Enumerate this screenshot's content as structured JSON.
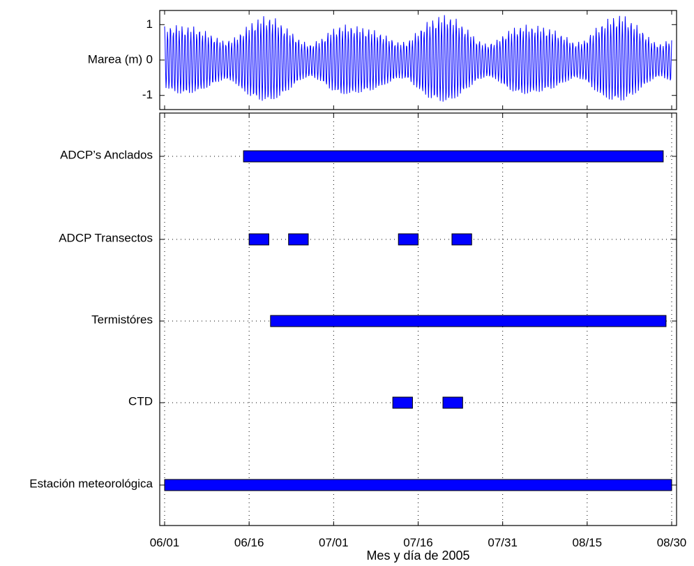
{
  "chart_data": [
    {
      "type": "line",
      "ylabel": "Marea (m)",
      "ylim": [
        -1.4,
        1.4
      ],
      "yticks": [
        -1,
        0,
        1
      ],
      "ytick_labels": [
        "-1",
        "0",
        "1"
      ],
      "x_range_days": [
        0,
        90
      ],
      "series": [
        {
          "description_free": true,
          "samples_per_day": 12,
          "envelope_max": [
            0.95,
            1.0,
            0.98,
            0.95,
            0.85,
            0.7,
            0.55,
            0.6,
            0.85,
            1.1,
            1.25,
            1.25,
            1.05,
            0.8,
            0.55,
            0.45,
            0.6,
            0.85,
            1.0,
            1.0,
            0.95,
            0.9,
            0.8,
            0.65,
            0.5,
            0.55,
            0.85,
            1.1,
            1.25,
            1.3,
            1.15,
            0.9,
            0.6,
            0.45,
            0.55,
            0.8,
            0.95,
            1.0,
            0.98,
            0.95,
            0.85,
            0.7,
            0.5,
            0.55,
            0.85,
            1.1,
            1.25,
            1.3,
            1.1,
            0.85,
            0.55,
            0.45,
            0.65
          ],
          "envelope_min": [
            -0.85,
            -1.0,
            -1.05,
            -1.0,
            -0.9,
            -0.75,
            -0.6,
            -0.65,
            -0.95,
            -1.15,
            -1.25,
            -1.25,
            -1.1,
            -0.85,
            -0.6,
            -0.5,
            -0.65,
            -0.9,
            -1.05,
            -1.05,
            -1.0,
            -0.95,
            -0.85,
            -0.7,
            -0.55,
            -0.6,
            -0.9,
            -1.15,
            -1.25,
            -1.3,
            -1.15,
            -0.9,
            -0.65,
            -0.5,
            -0.6,
            -0.85,
            -1.0,
            -1.05,
            -1.0,
            -0.95,
            -0.85,
            -0.7,
            -0.55,
            -0.6,
            -0.9,
            -1.15,
            -1.25,
            -1.25,
            -1.1,
            -0.85,
            -0.6,
            -0.5,
            -0.7
          ],
          "color": "#0000ff"
        }
      ]
    },
    {
      "type": "gantt",
      "xlabel": "Mes y día de 2005",
      "x_ticks": [
        {
          "label": "06/01",
          "day": 0
        },
        {
          "label": "06/16",
          "day": 15
        },
        {
          "label": "07/01",
          "day": 30
        },
        {
          "label": "07/16",
          "day": 45
        },
        {
          "label": "07/31",
          "day": 60
        },
        {
          "label": "08/15",
          "day": 75
        },
        {
          "label": "08/30",
          "day": 90
        }
      ],
      "categories": [
        "ADCP’s Anclados",
        "ADCP Transectos",
        "Termistóres",
        "CTD",
        "Estación meteorológica"
      ],
      "bars": [
        {
          "category": 0,
          "start_day": 14.0,
          "end_day": 88.5
        },
        {
          "category": 1,
          "start_day": 15.0,
          "end_day": 18.5
        },
        {
          "category": 1,
          "start_day": 22.0,
          "end_day": 25.5
        },
        {
          "category": 1,
          "start_day": 41.5,
          "end_day": 45.0
        },
        {
          "category": 1,
          "start_day": 51.0,
          "end_day": 54.5
        },
        {
          "category": 2,
          "start_day": 18.8,
          "end_day": 89.0
        },
        {
          "category": 3,
          "start_day": 40.5,
          "end_day": 44.0
        },
        {
          "category": 3,
          "start_day": 49.4,
          "end_day": 52.9
        },
        {
          "category": 4,
          "start_day": 0.0,
          "end_day": 90.0
        }
      ],
      "bar_color": "#0000ff",
      "grid": true
    }
  ]
}
